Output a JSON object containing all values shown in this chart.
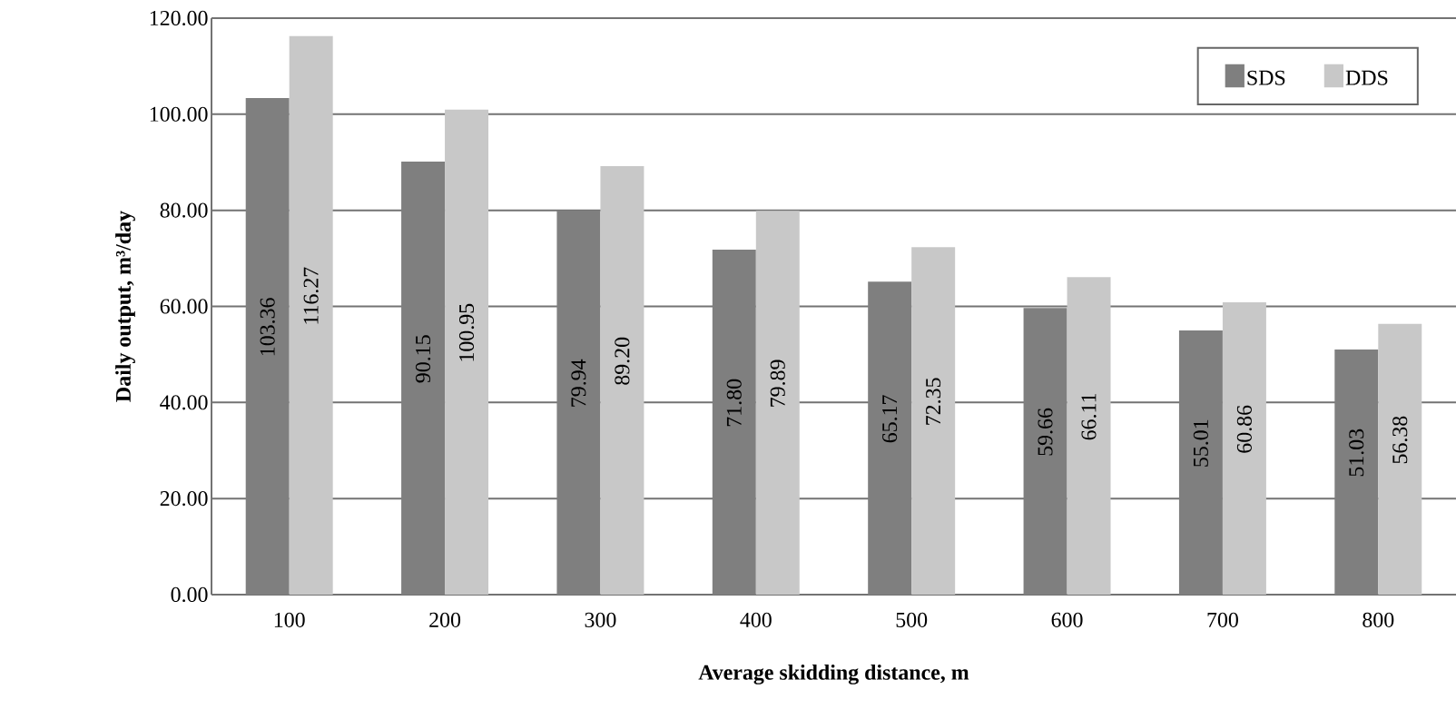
{
  "chart_data": {
    "type": "bar",
    "xlabel": "Average skidding distance, m",
    "ylabel": "Daily output, m³/day",
    "categories": [
      "100",
      "200",
      "300",
      "400",
      "500",
      "600",
      "700",
      "800"
    ],
    "series": [
      {
        "name": "SDS",
        "color": "#7f7f7f",
        "values": [
          103.36,
          90.15,
          79.94,
          71.8,
          65.17,
          59.66,
          55.01,
          51.03
        ],
        "value_labels": [
          "103.36",
          "90.15",
          "79.94",
          "71.80",
          "65.17",
          "59.66",
          "55.01",
          "51.03"
        ]
      },
      {
        "name": "DDS",
        "color": "#c8c8c8",
        "values": [
          116.27,
          100.95,
          89.2,
          79.89,
          72.35,
          66.11,
          60.86,
          56.38
        ],
        "value_labels": [
          "116.27",
          "100.95",
          "89.20",
          "79.89",
          "72.35",
          "66.11",
          "60.86",
          "56.38"
        ]
      }
    ],
    "ylim": [
      0,
      120
    ],
    "yticks": [
      {
        "value": 0,
        "label": "0.00"
      },
      {
        "value": 20,
        "label": "20.00"
      },
      {
        "value": 40,
        "label": "40.00"
      },
      {
        "value": 60,
        "label": "60.00"
      },
      {
        "value": 80,
        "label": "80.00"
      },
      {
        "value": 100,
        "label": "100.00"
      },
      {
        "value": 120,
        "label": "120.00"
      }
    ],
    "grid": "y",
    "legend": "top right"
  }
}
